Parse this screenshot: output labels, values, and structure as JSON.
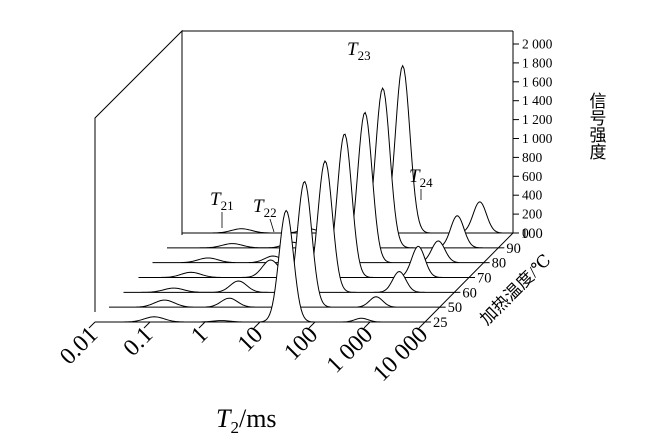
{
  "chart_data": {
    "type": "line",
    "x_axis": {
      "label_var": "T",
      "label_sub": "2",
      "label_unit": "/ms",
      "scale": "log",
      "range": [
        0.01,
        10000
      ],
      "ticks": [
        0.01,
        0.1,
        1,
        10,
        100,
        1000,
        10000
      ],
      "tick_labels": [
        "0.01",
        "0.1",
        "1",
        "10",
        "100",
        "1 000",
        "10 000"
      ]
    },
    "y_axis": {
      "label": "信号强度",
      "range": [
        0,
        2000
      ],
      "ticks": [
        0,
        200,
        400,
        600,
        800,
        1000,
        1200,
        1400,
        1600,
        1800,
        2000
      ],
      "tick_labels": [
        "0",
        "200",
        "400",
        "600",
        "800",
        "1 000",
        "1 200",
        "1 400",
        "1 600",
        "1 800",
        "2 000"
      ]
    },
    "z_axis": {
      "label": "加热温度/℃",
      "ticks": [
        25,
        50,
        60,
        70,
        80,
        90,
        100
      ],
      "tick_labels": [
        "25",
        "50",
        "60",
        "70",
        "80",
        "90",
        "100"
      ]
    },
    "peak_labels": [
      {
        "var": "T",
        "sub": "21"
      },
      {
        "var": "T",
        "sub": "22"
      },
      {
        "var": "T",
        "sub": "23"
      },
      {
        "var": "T",
        "sub": "24"
      }
    ],
    "series": [
      {
        "temperature": 25,
        "peaks": [
          {
            "t2": 0.12,
            "amp": 55,
            "w": 0.18
          },
          {
            "t2": 2.0,
            "amp": 15,
            "w": 0.15
          },
          {
            "t2": 30,
            "amp": 1180,
            "w": 0.13
          },
          {
            "t2": 700,
            "amp": 40,
            "w": 0.12
          }
        ]
      },
      {
        "temperature": 50,
        "peaks": [
          {
            "t2": 0.1,
            "amp": 75,
            "w": 0.18
          },
          {
            "t2": 1.5,
            "amp": 95,
            "w": 0.15
          },
          {
            "t2": 35,
            "amp": 1330,
            "w": 0.13
          },
          {
            "t2": 700,
            "amp": 110,
            "w": 0.12
          }
        ]
      },
      {
        "temperature": 60,
        "peaks": [
          {
            "t2": 0.08,
            "amp": 45,
            "w": 0.18
          },
          {
            "t2": 1.2,
            "amp": 120,
            "w": 0.15
          },
          {
            "t2": 45,
            "amp": 1390,
            "w": 0.13
          },
          {
            "t2": 1000,
            "amp": 220,
            "w": 0.12
          }
        ]
      },
      {
        "temperature": 70,
        "peaks": [
          {
            "t2": 0.09,
            "amp": 55,
            "w": 0.18
          },
          {
            "t2": 2.5,
            "amp": 185,
            "w": 0.15
          },
          {
            "t2": 55,
            "amp": 1520,
            "w": 0.13
          },
          {
            "t2": 1200,
            "amp": 330,
            "w": 0.12
          }
        ]
      },
      {
        "temperature": 80,
        "peaks": [
          {
            "t2": 0.1,
            "amp": 50,
            "w": 0.18
          },
          {
            "t2": 1.5,
            "amp": 70,
            "w": 0.15
          },
          {
            "t2": 70,
            "amp": 1590,
            "w": 0.13
          },
          {
            "t2": 1500,
            "amp": 230,
            "w": 0.12
          }
        ]
      },
      {
        "temperature": 90,
        "peaks": [
          {
            "t2": 0.15,
            "amp": 45,
            "w": 0.18
          },
          {
            "t2": 1.8,
            "amp": 60,
            "w": 0.15
          },
          {
            "t2": 80,
            "amp": 1690,
            "w": 0.13
          },
          {
            "t2": 1800,
            "amp": 340,
            "w": 0.12
          }
        ]
      },
      {
        "temperature": 100,
        "peaks": [
          {
            "t2": 0.12,
            "amp": 45,
            "w": 0.18
          },
          {
            "t2": 2.0,
            "amp": 45,
            "w": 0.15
          },
          {
            "t2": 100,
            "amp": 1770,
            "w": 0.13
          },
          {
            "t2": 2500,
            "amp": 330,
            "w": 0.12
          }
        ]
      }
    ],
    "grid": false
  }
}
